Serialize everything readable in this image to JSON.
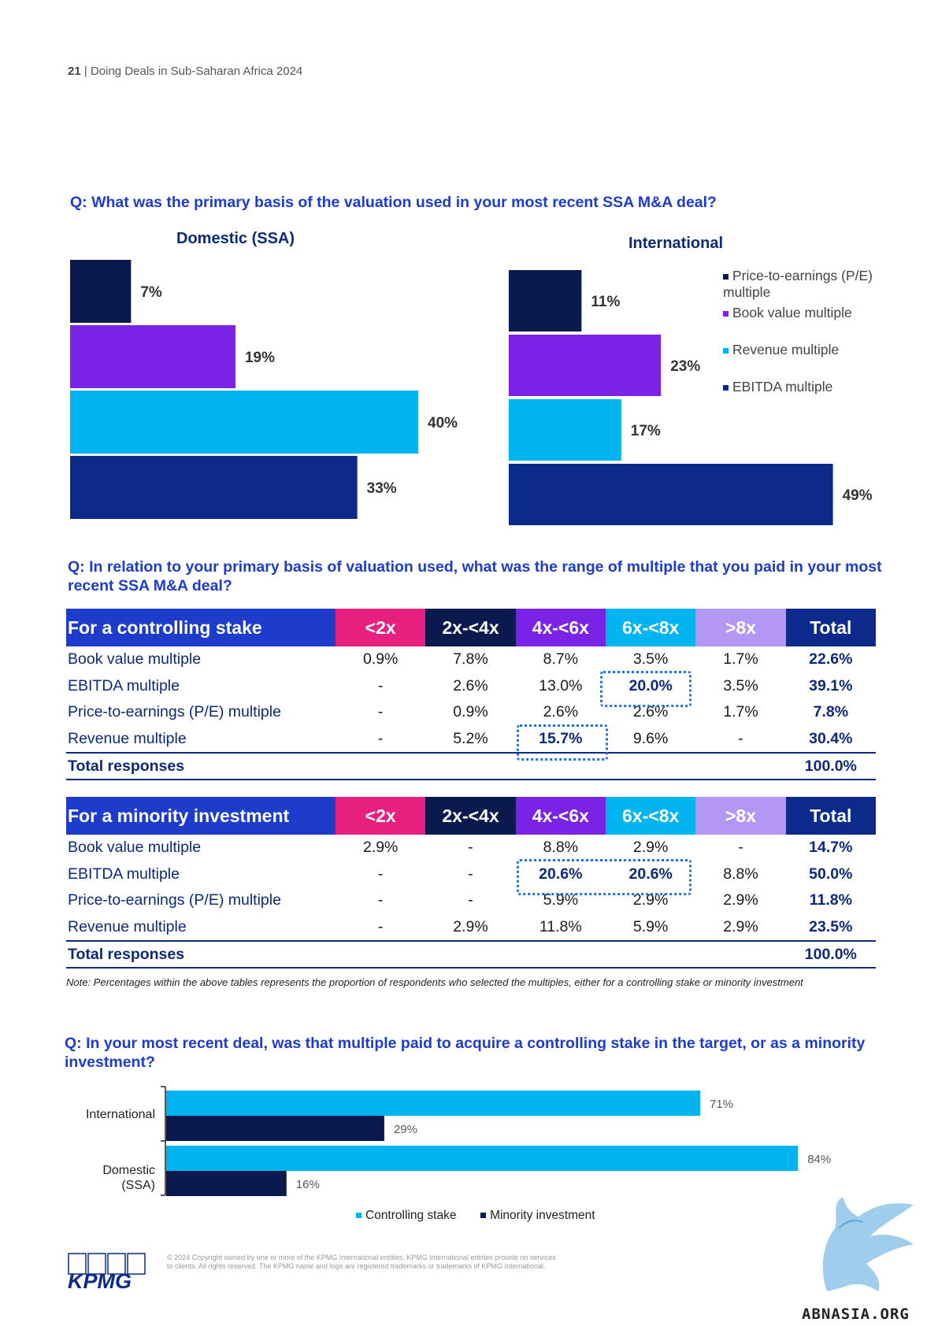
{
  "header": {
    "page_number": "21",
    "title": "Doing Deals in Sub-Saharan Africa 2024"
  },
  "section1": {
    "question": "Q: What was the primary basis of the valuation used in your most recent SSA M&A deal?"
  },
  "section2": {
    "question": "Q: In relation to your primary basis of valuation used, what was the range of multiple that you paid in your most recent SSA M&A deal?"
  },
  "section3": {
    "question": "Q: In your most recent deal, was that multiple paid to acquire a controlling stake in the target, or as a minority investment?"
  },
  "colors": {
    "pe": "#0a1a4f",
    "book": "#7a22e6",
    "revenue": "#00b4ef",
    "ebitda": "#0c2a8a",
    "title_blue": "#1e3ccc",
    "col_lt2": "#e7207f",
    "col_2_4": "#0a1a4f",
    "col_4_6": "#7a22e6",
    "col_6_8": "#00b4ef",
    "col_gt8": "#b497f2",
    "col_total": "#0c2a8a",
    "first_header": "#1e3ccc"
  },
  "chart_data": [
    {
      "type": "bar",
      "title": "Domestic (SSA)",
      "orientation": "horizontal",
      "categories": [
        "Price-to-earnings (P/E) multiple",
        "Book value multiple",
        "Revenue multiple",
        "EBITDA multiple"
      ],
      "values": [
        7,
        19,
        40,
        33
      ],
      "labels": [
        "7%",
        "19%",
        "40%",
        "33%"
      ],
      "xlim": [
        0,
        60
      ]
    },
    {
      "type": "bar",
      "title": "International",
      "orientation": "horizontal",
      "categories": [
        "Price-to-earnings (P/E) multiple",
        "Book value multiple",
        "Revenue multiple",
        "EBITDA multiple"
      ],
      "values": [
        11,
        23,
        17,
        49
      ],
      "labels": [
        "11%",
        "23%",
        "17%",
        "49%"
      ],
      "xlim": [
        0,
        60
      ],
      "legend": {
        "placement": "top-right",
        "entries": [
          "Price-to-earnings (P/E) multiple",
          "Book value multiple",
          "Revenue multiple",
          "EBITDA multiple"
        ]
      }
    },
    {
      "type": "table",
      "title": "For a controlling stake",
      "columns": [
        "<2x",
        "2x-<4x",
        "4x-<6x",
        "6x-<8x",
        ">8x",
        "Total"
      ],
      "rows": [
        {
          "label": "Book value multiple",
          "cells": [
            "0.9%",
            "7.8%",
            "8.7%",
            "3.5%",
            "1.7%",
            "22.6%"
          ]
        },
        {
          "label": "EBITDA multiple",
          "cells": [
            "-",
            "2.6%",
            "13.0%",
            "20.0%",
            "3.5%",
            "39.1%"
          ]
        },
        {
          "label": "Price-to-earnings (P/E) multiple",
          "cells": [
            "-",
            "0.9%",
            "2.6%",
            "2.6%",
            "1.7%",
            "7.8%"
          ]
        },
        {
          "label": "Revenue multiple",
          "cells": [
            "-",
            "5.2%",
            "15.7%",
            "9.6%",
            "-",
            "30.4%"
          ]
        }
      ],
      "total_label": "Total responses",
      "total_value": "100.0%",
      "highlighted": [
        "EBITDA multiple / 6x-<8x",
        "Revenue multiple / 4x-<6x"
      ]
    },
    {
      "type": "table",
      "title": "For a minority investment",
      "columns": [
        "<2x",
        "2x-<4x",
        "4x-<6x",
        "6x-<8x",
        ">8x",
        "Total"
      ],
      "rows": [
        {
          "label": "Book value multiple",
          "cells": [
            "2.9%",
            "-",
            "8.8%",
            "2.9%",
            "-",
            "14.7%"
          ]
        },
        {
          "label": "EBITDA multiple",
          "cells": [
            "-",
            "-",
            "20.6%",
            "20.6%",
            "8.8%",
            "50.0%"
          ]
        },
        {
          "label": "Price-to-earnings (P/E) multiple",
          "cells": [
            "-",
            "-",
            "5.9%",
            "2.9%",
            "2.9%",
            "11.8%"
          ]
        },
        {
          "label": "Revenue multiple",
          "cells": [
            "-",
            "2.9%",
            "11.8%",
            "5.9%",
            "2.9%",
            "23.5%"
          ]
        }
      ],
      "total_label": "Total responses",
      "total_value": "100.0%",
      "highlighted": [
        "EBITDA multiple / 4x-<6x",
        "EBITDA multiple / 6x-<8x"
      ]
    },
    {
      "type": "bar",
      "orientation": "horizontal",
      "categories": [
        "International",
        "Domestic (SSA)"
      ],
      "series": [
        {
          "name": "Controlling stake",
          "values": [
            71,
            84
          ],
          "labels": [
            "71%",
            "84%"
          ],
          "color": "#00b4ef"
        },
        {
          "name": "Minority investment",
          "values": [
            29,
            16
          ],
          "labels": [
            "29%",
            "16%"
          ],
          "color": "#0a1a4f"
        }
      ],
      "xlim": [
        0,
        100
      ],
      "legend": {
        "placement": "bottom"
      }
    }
  ],
  "note": "Note: Percentages within the above tables represents the proportion of respondents who selected the multiples, either for a controlling stake or minority investment",
  "footer": {
    "logo_text": "KPMG",
    "copyright": "© 2024 Copyright owned by one or more of the KPMG International entities. KPMG International entities provide no services to clients. All rights reserved. The KPMG name and logo are registered trademarks or trademarks of KPMG International.",
    "watermark": "ABNASIA.ORG"
  }
}
